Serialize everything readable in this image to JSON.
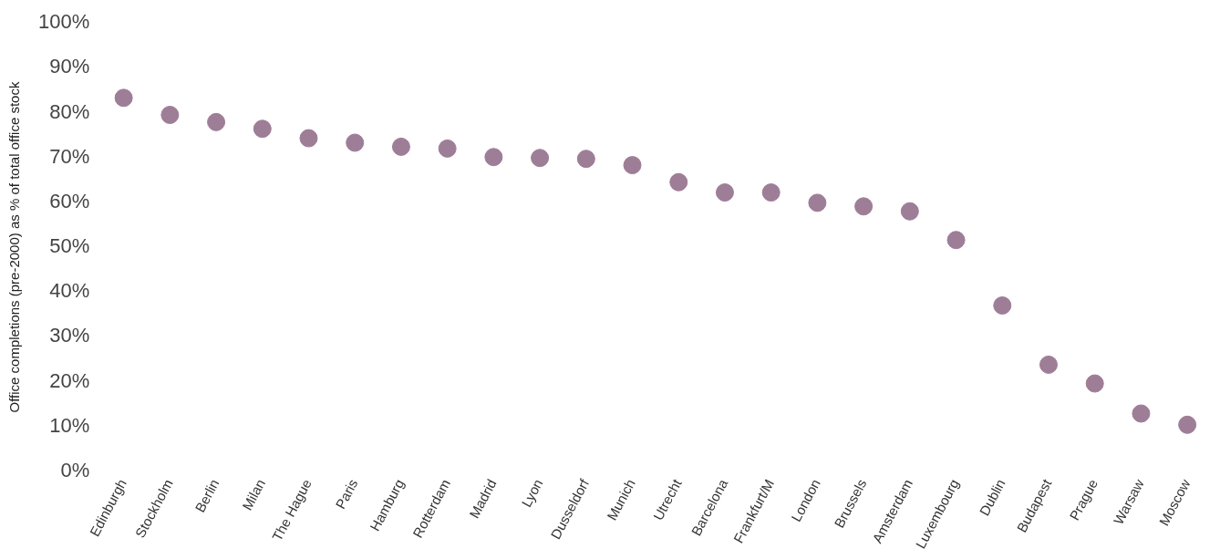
{
  "chart_data": {
    "type": "scatter",
    "ylabel": "Office completions (pre-2000) as % of total office stock",
    "categories": [
      "Edinburgh",
      "Stockholm",
      "Berlin",
      "Milan",
      "The Hague",
      "Paris",
      "Hamburg",
      "Rotterdam",
      "Madrid",
      "Lyon",
      "Dusseldorf",
      "Munich",
      "Utrecht",
      "Barcelona",
      "Frankfurt/M",
      "London",
      "Brussels",
      "Amsterdam",
      "Luxembourg",
      "Dublin",
      "Budapest",
      "Prague",
      "Warsaw",
      "Moscow"
    ],
    "values": [
      83.3,
      79.5,
      77.9,
      76.4,
      74.3,
      73.3,
      72.4,
      72.0,
      70.1,
      69.9,
      69.7,
      68.3,
      64.5,
      62.2,
      62.2,
      59.9,
      59.1,
      58.0,
      51.6,
      37.0,
      23.8,
      19.6,
      12.9,
      10.4
    ],
    "color": "#9e7d97",
    "marker": "circle",
    "grid": false,
    "legend": false,
    "ylim": [
      0,
      100
    ],
    "yticks": [
      {
        "value": 0,
        "label": "0%"
      },
      {
        "value": 10,
        "label": "10%"
      },
      {
        "value": 20,
        "label": "20%"
      },
      {
        "value": 30,
        "label": "30%"
      },
      {
        "value": 40,
        "label": "40%"
      },
      {
        "value": 50,
        "label": "50%"
      },
      {
        "value": 60,
        "label": "60%"
      },
      {
        "value": 70,
        "label": "70%"
      },
      {
        "value": 80,
        "label": "80%"
      },
      {
        "value": 90,
        "label": "90%"
      },
      {
        "value": 100,
        "label": "100%"
      }
    ]
  }
}
